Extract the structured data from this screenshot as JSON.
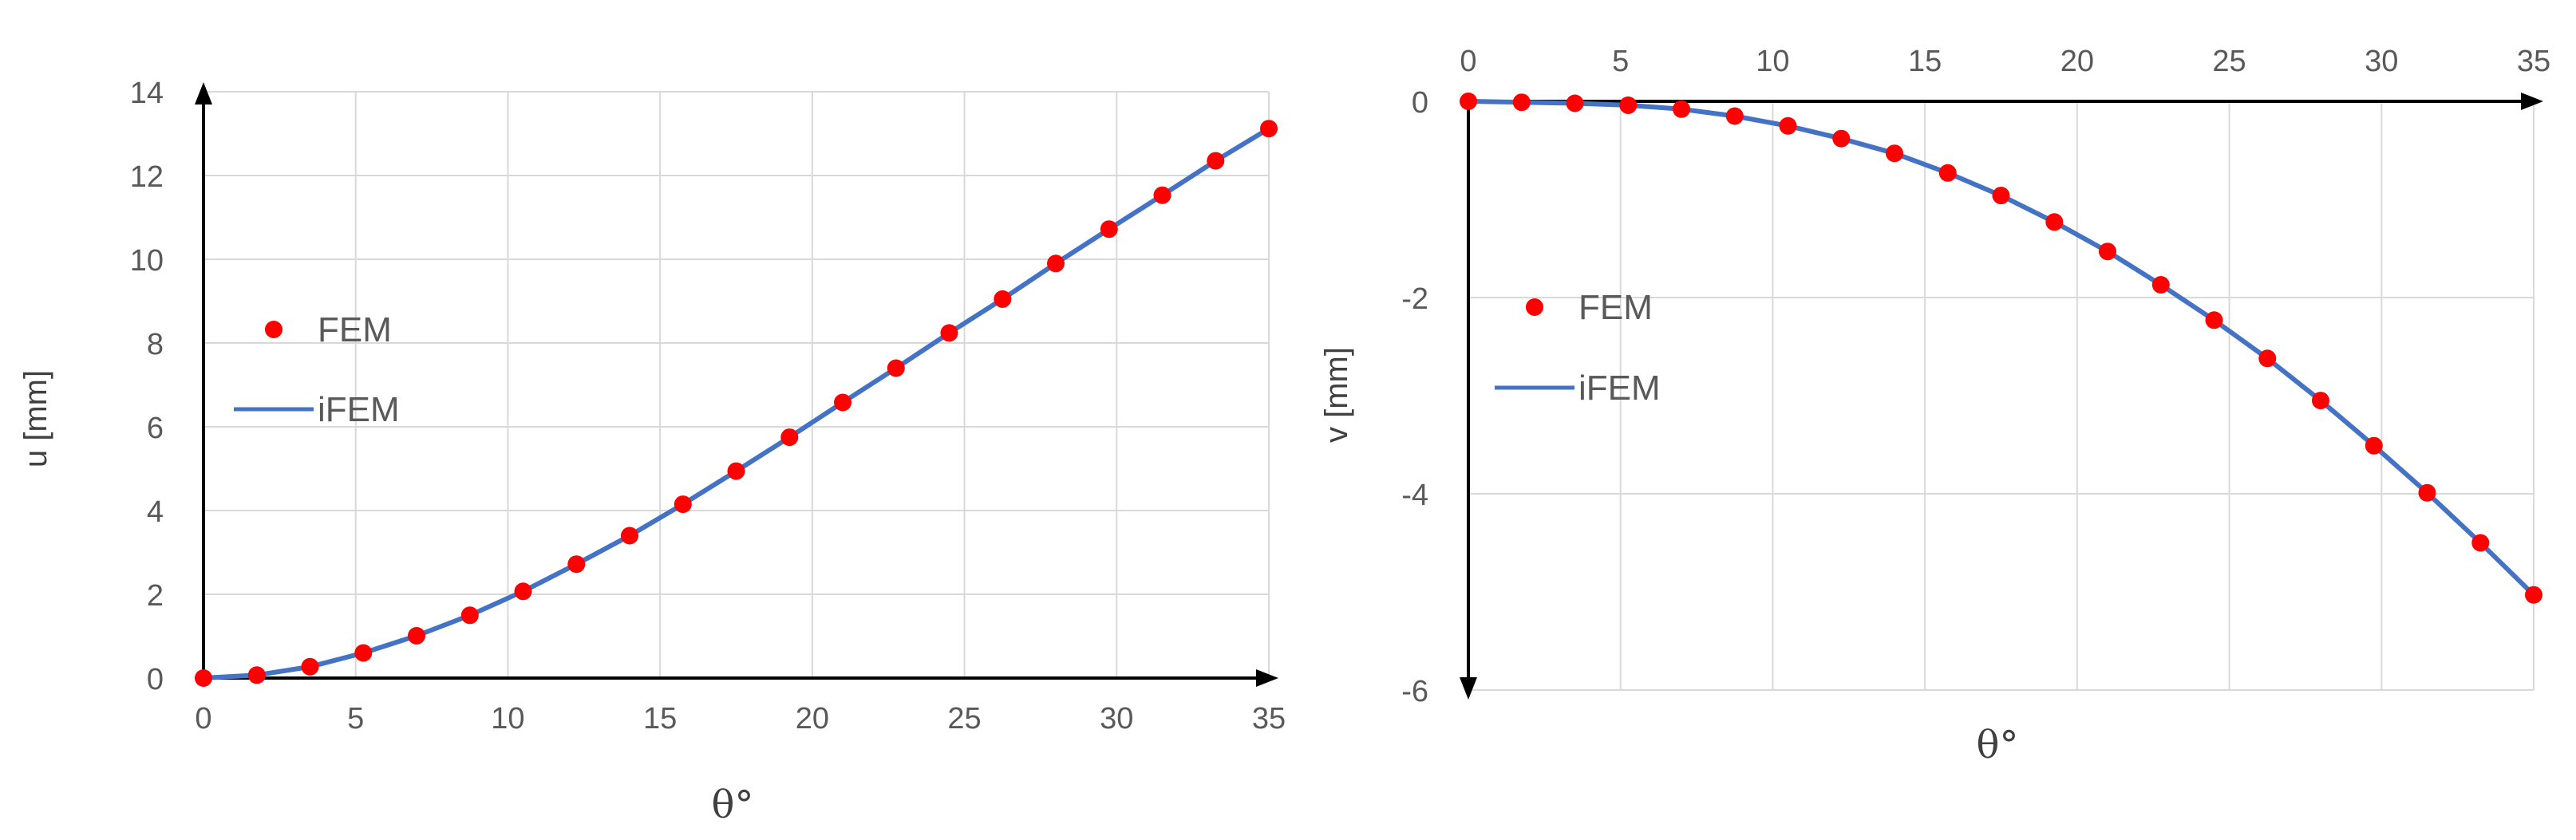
{
  "chart_data": [
    {
      "type": "line",
      "xlabel": "θ°",
      "ylabel": "u [mm]",
      "xlim": [
        0,
        35
      ],
      "ylim": [
        0,
        14
      ],
      "xticks": [
        0,
        5,
        10,
        15,
        20,
        25,
        30,
        35
      ],
      "yticks": [
        0,
        2,
        4,
        6,
        8,
        10,
        12,
        14
      ],
      "legend_position": "left",
      "series": [
        {
          "name": "FEM",
          "style": "markers",
          "color": "#ff0000",
          "x": [
            0,
            1.75,
            3.5,
            5.25,
            7,
            8.75,
            10.5,
            12.25,
            14,
            15.75,
            17.5,
            19.25,
            21,
            22.75,
            24.5,
            26.25,
            28,
            29.75,
            31.5,
            33.25,
            35
          ],
          "y": [
            0,
            0.07,
            0.27,
            0.6,
            1.01,
            1.5,
            2.07,
            2.72,
            3.4,
            4.15,
            4.94,
            5.75,
            6.58,
            7.4,
            8.24,
            9.05,
            9.9,
            10.72,
            11.53,
            12.35,
            13.12
          ]
        },
        {
          "name": "iFEM",
          "style": "line",
          "color": "#4472c4",
          "x": [
            0,
            1.75,
            3.5,
            5.25,
            7,
            8.75,
            10.5,
            12.25,
            14,
            15.75,
            17.5,
            19.25,
            21,
            22.75,
            24.5,
            26.25,
            28,
            29.75,
            31.5,
            33.25,
            35
          ],
          "y": [
            0,
            0.07,
            0.27,
            0.6,
            1.01,
            1.5,
            2.07,
            2.72,
            3.4,
            4.15,
            4.94,
            5.75,
            6.58,
            7.4,
            8.24,
            9.05,
            9.9,
            10.72,
            11.53,
            12.35,
            13.12
          ]
        }
      ]
    },
    {
      "type": "line",
      "xlabel": "θ°",
      "ylabel": "v [mm]",
      "xlim": [
        0,
        35
      ],
      "ylim": [
        -6,
        0
      ],
      "xticks": [
        0,
        5,
        10,
        15,
        20,
        25,
        30,
        35
      ],
      "yticks": [
        0,
        -2,
        -4,
        -6
      ],
      "x_axis_position": "top",
      "legend_position": "left",
      "series": [
        {
          "name": "FEM",
          "style": "markers",
          "color": "#ff0000",
          "x": [
            0,
            1.75,
            3.5,
            5.25,
            7,
            8.75,
            10.5,
            12.25,
            14,
            15.75,
            17.5,
            19.25,
            21,
            22.75,
            24.5,
            26.25,
            28,
            29.75,
            31.5,
            33.25,
            35
          ],
          "y": [
            0,
            -0.01,
            -0.02,
            -0.04,
            -0.08,
            -0.15,
            -0.25,
            -0.38,
            -0.53,
            -0.73,
            -0.96,
            -1.23,
            -1.53,
            -1.87,
            -2.23,
            -2.62,
            -3.05,
            -3.51,
            -3.99,
            -4.5,
            -5.03
          ]
        },
        {
          "name": "iFEM",
          "style": "line",
          "color": "#4472c4",
          "x": [
            0,
            1.75,
            3.5,
            5.25,
            7,
            8.75,
            10.5,
            12.25,
            14,
            15.75,
            17.5,
            19.25,
            21,
            22.75,
            24.5,
            26.25,
            28,
            29.75,
            31.5,
            33.25,
            35
          ],
          "y": [
            0,
            -0.01,
            -0.02,
            -0.04,
            -0.08,
            -0.15,
            -0.25,
            -0.38,
            -0.53,
            -0.73,
            -0.96,
            -1.23,
            -1.53,
            -1.87,
            -2.23,
            -2.62,
            -3.05,
            -3.51,
            -3.99,
            -4.5,
            -5.03
          ]
        }
      ]
    }
  ]
}
